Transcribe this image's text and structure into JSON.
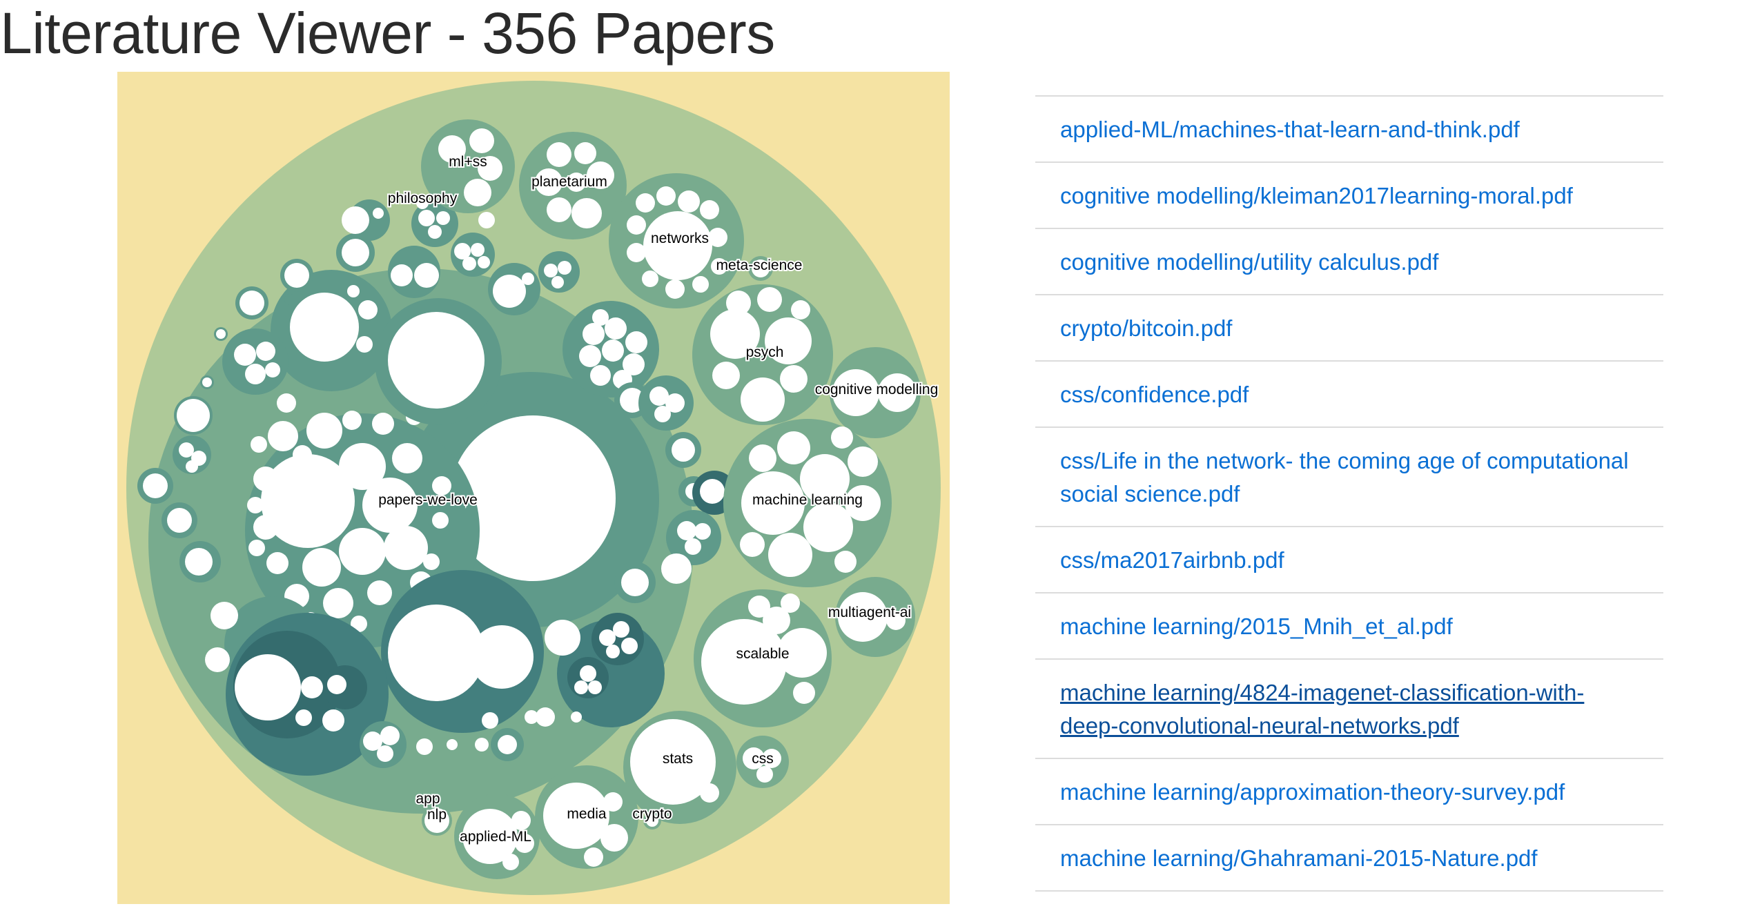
{
  "page": {
    "title": "Literature Viewer - 356 Papers"
  },
  "colors": {
    "background": "#f5e3a3",
    "level1": "#aec998",
    "level2": "#78ab8e",
    "level3": "#5f9a8a",
    "level4": "#437f7e",
    "level5": "#356c6e",
    "leaf": "#ffffff",
    "link": "#0a6fd4"
  },
  "pack_labels": {
    "ml_ss": "ml+ss",
    "philosophy": "philosophy",
    "planetarium": "planetarium",
    "networks": "networks",
    "meta_science": "meta-science",
    "psych": "psych",
    "cognitive_modelling": "cognitive modelling",
    "papers_we_love": "papers-we-love",
    "machine_learning": "machine learning",
    "multiagent_ai": "multiagent-ai",
    "scalable": "scalable",
    "stats": "stats",
    "css": "css",
    "media": "media",
    "crypto": "crypto",
    "app": "app",
    "nlp": "nlp",
    "applied_ml": "applied-ML"
  },
  "papers": [
    "applied-ML/machines-that-learn-and-think.pdf",
    "cognitive modelling/kleiman2017learning-moral.pdf",
    "cognitive modelling/utility calculus.pdf",
    "crypto/bitcoin.pdf",
    "css/confidence.pdf",
    "css/Life in the network- the coming age of computational social science.pdf",
    "css/ma2017airbnb.pdf",
    "machine learning/2015_Mnih_et_al.pdf",
    "machine learning/4824-imagenet-classification-with-deep-convolutional-neural-networks.pdf",
    "machine learning/approximation-theory-survey.pdf",
    "machine learning/Ghahramani-2015-Nature.pdf"
  ]
}
